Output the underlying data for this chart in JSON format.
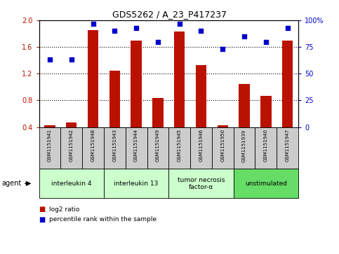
{
  "title": "GDS5262 / A_23_P417237",
  "samples": [
    "GSM1151941",
    "GSM1151942",
    "GSM1151948",
    "GSM1151943",
    "GSM1151944",
    "GSM1151949",
    "GSM1151945",
    "GSM1151946",
    "GSM1151950",
    "GSM1151939",
    "GSM1151940",
    "GSM1151947"
  ],
  "log2_ratio": [
    0.43,
    0.47,
    1.85,
    1.25,
    1.7,
    0.84,
    1.83,
    1.33,
    0.43,
    1.05,
    0.87,
    1.7
  ],
  "percentile": [
    63,
    63,
    97,
    90,
    93,
    80,
    97,
    90,
    73,
    85,
    80,
    93
  ],
  "groups": [
    {
      "label": "interleukin 4",
      "start": 0,
      "end": 3,
      "color": "#ccffcc"
    },
    {
      "label": "interleukin 13",
      "start": 3,
      "end": 6,
      "color": "#ccffcc"
    },
    {
      "label": "tumor necrosis\nfactor-α",
      "start": 6,
      "end": 9,
      "color": "#ccffcc"
    },
    {
      "label": "unstimulated",
      "start": 9,
      "end": 12,
      "color": "#66dd66"
    }
  ],
  "bar_color": "#bb1100",
  "dot_color": "#0000cc",
  "ylim_left": [
    0.4,
    2.0
  ],
  "ylim_right": [
    0,
    100
  ],
  "yticks_left": [
    0.4,
    0.8,
    1.2,
    1.6,
    2.0
  ],
  "yticks_right": [
    0,
    25,
    50,
    75,
    100
  ],
  "ytick_labels_right": [
    "0",
    "25",
    "50",
    "75",
    "100%"
  ],
  "background_color": "#ffffff",
  "legend_bar_label": "log2 ratio",
  "legend_dot_label": "percentile rank within the sample",
  "gray_box_color": "#cccccc",
  "bar_bottom": 0.4
}
